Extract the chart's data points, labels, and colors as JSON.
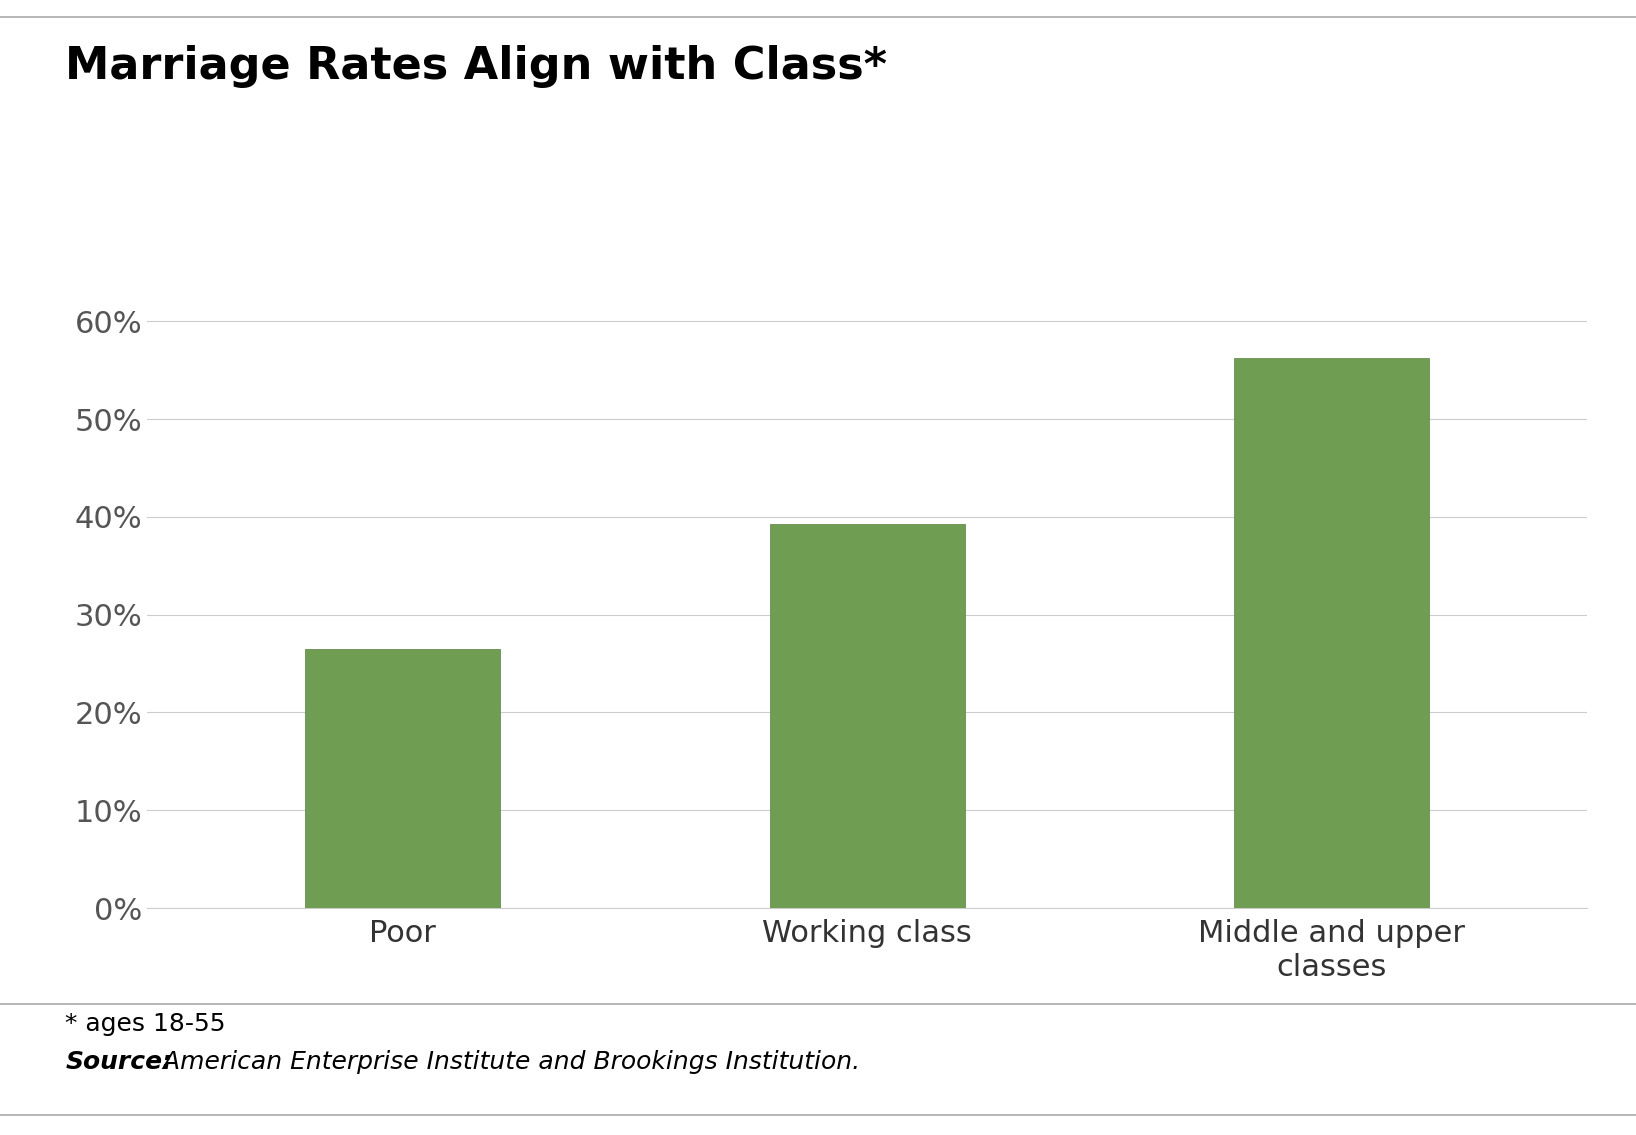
{
  "title": "Marriage Rates Align with Class*",
  "categories": [
    "Poor",
    "Working class",
    "Middle and upper\nclasses"
  ],
  "values": [
    0.265,
    0.393,
    0.562
  ],
  "bar_color": "#6f9d52",
  "bar_edge_color": "#5a8040",
  "ylim": [
    0,
    0.65
  ],
  "yticks": [
    0.0,
    0.1,
    0.2,
    0.3,
    0.4,
    0.5,
    0.6
  ],
  "ytick_labels": [
    "0%",
    "10%",
    "20%",
    "30%",
    "40%",
    "50%",
    "60%"
  ],
  "title_fontsize": 32,
  "tick_fontsize": 22,
  "footnote_fontsize": 18,
  "footnote_line1": "* ages 18-55",
  "footnote_line2_bold": "Source:",
  "footnote_line2_rest": " American Enterprise Institute and Brookings Institution.",
  "background_color": "#ffffff",
  "plot_bg_color": "#ffffff",
  "grid_color": "#cccccc",
  "bar_width": 0.42,
  "separator_color": "#aaaaaa"
}
